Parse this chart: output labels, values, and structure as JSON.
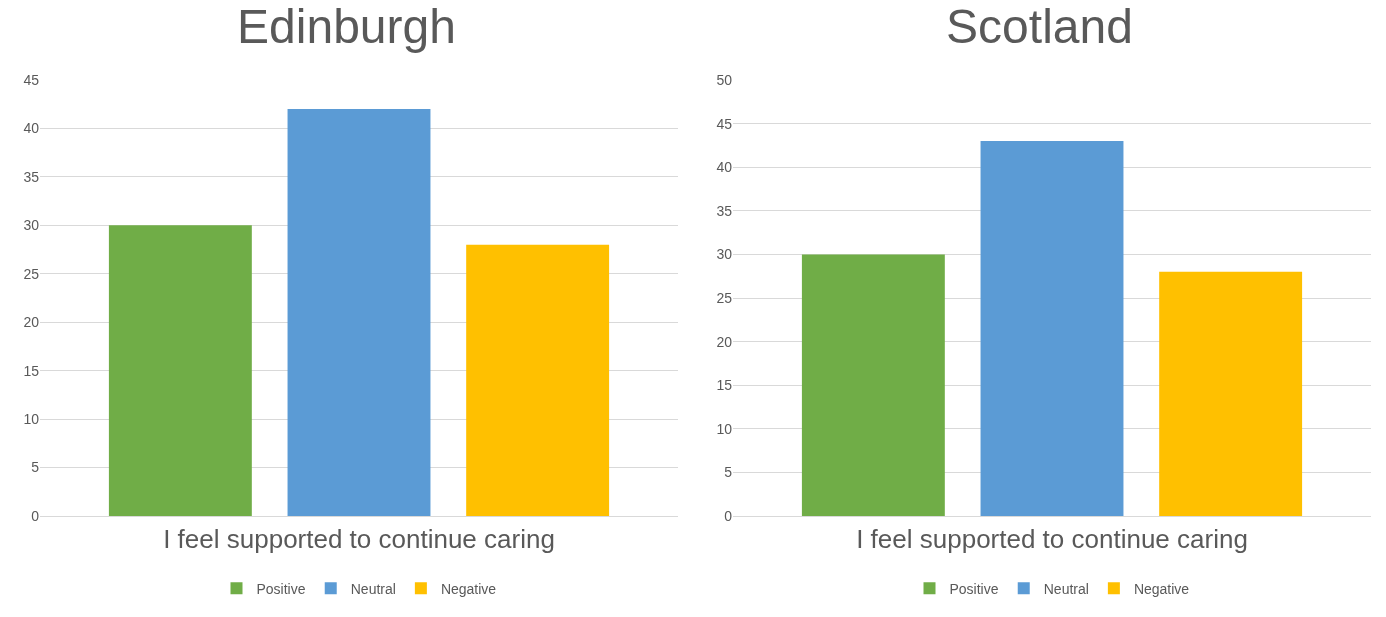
{
  "chart_data": [
    {
      "type": "bar",
      "title": "Edinburgh",
      "categories": [
        "I feel supported to continue caring"
      ],
      "series": [
        {
          "name": "Positive",
          "color": "#70ad47",
          "values": [
            30
          ]
        },
        {
          "name": "Neutral",
          "color": "#5b9bd5",
          "values": [
            42
          ]
        },
        {
          "name": "Negative",
          "color": "#ffc000",
          "values": [
            28
          ]
        }
      ],
      "ylim": [
        0,
        45
      ],
      "yticks": [
        0,
        5,
        10,
        15,
        20,
        25,
        30,
        35,
        40,
        45
      ],
      "grid": "y",
      "legend": "bottom"
    },
    {
      "type": "bar",
      "title": "Scotland",
      "categories": [
        "I feel supported to continue caring"
      ],
      "series": [
        {
          "name": "Positive",
          "color": "#70ad47",
          "values": [
            30
          ]
        },
        {
          "name": "Neutral",
          "color": "#5b9bd5",
          "values": [
            43
          ]
        },
        {
          "name": "Negative",
          "color": "#ffc000",
          "values": [
            28
          ]
        }
      ],
      "ylim": [
        0,
        50
      ],
      "yticks": [
        0,
        5,
        10,
        15,
        20,
        25,
        30,
        35,
        40,
        45,
        50
      ],
      "grid": "y",
      "legend": "bottom"
    }
  ]
}
